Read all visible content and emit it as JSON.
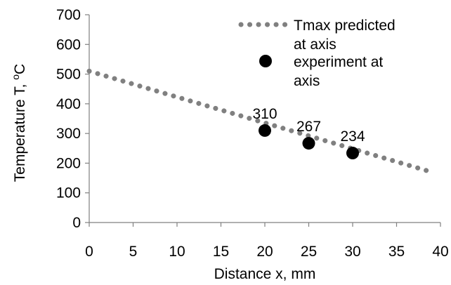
{
  "chart_data": {
    "type": "scatter",
    "title": "",
    "xlabel": "Distance x, mm",
    "ylabel_main": "Temperature T, ",
    "ylabel_sup": "o",
    "ylabel_unit": "C",
    "xlim": [
      0,
      40
    ],
    "ylim": [
      0,
      700
    ],
    "xticks": [
      0,
      5,
      10,
      15,
      20,
      25,
      30,
      35,
      40
    ],
    "yticks": [
      0,
      100,
      200,
      300,
      400,
      500,
      600,
      700
    ],
    "grid": false,
    "legend_position": "top-right",
    "series": [
      {
        "name": "Tmax predicted at axis",
        "legend_lines": [
          "Tmax predicted",
          "at axis"
        ],
        "style": "dotted-line",
        "color": "#808080",
        "x": [
          0,
          39
        ],
        "y": [
          510,
          170
        ]
      },
      {
        "name": "experiment at axis",
        "legend_lines": [
          "experiment at",
          "axis"
        ],
        "style": "markers",
        "color": "#000000",
        "x": [
          20,
          25,
          30
        ],
        "y": [
          310,
          267,
          234
        ],
        "labels": [
          "310",
          "267",
          "234"
        ]
      }
    ]
  }
}
